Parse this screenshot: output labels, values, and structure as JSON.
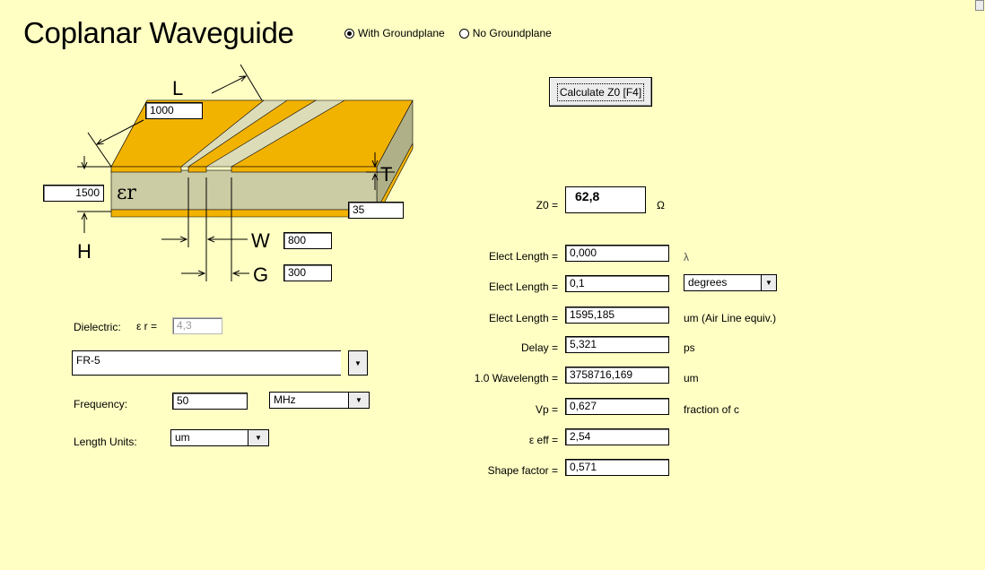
{
  "title": "Coplanar Waveguide",
  "ground_options": [
    {
      "label": "With Groundplane",
      "selected": true
    },
    {
      "label": "No Groundplane",
      "selected": false
    }
  ],
  "calculate_button": "Calculate Z0  [F4]",
  "diagram": {
    "L_label": "L",
    "L_value": "1000",
    "H_label": "H",
    "H_value": "1500",
    "T_label": "T",
    "T_value": "35",
    "W_label": "W",
    "W_value": "800",
    "G_label": "G",
    "G_value": "300",
    "er_symbol": "εr"
  },
  "z0": {
    "label": "Z0 =",
    "value": "62,8",
    "unit": "Ω"
  },
  "results": [
    {
      "label": "Elect Length =",
      "value": "0,000",
      "unit": "λ"
    },
    {
      "label": "Elect Length =",
      "value": "0,1",
      "unit": "degrees"
    },
    {
      "label": "Elect Length =",
      "value": "1595,185",
      "unit": "um  (Air Line equiv.)"
    },
    {
      "label": "Delay =",
      "value": "5,321",
      "unit": "ps"
    },
    {
      "label": "1.0 Wavelength =",
      "value": "3758716,169",
      "unit": "um"
    },
    {
      "label": "Vp =",
      "value": "0,627",
      "unit": "fraction of c"
    },
    {
      "label": "ε eff =",
      "value": "2,54",
      "unit": ""
    },
    {
      "label": "Shape factor =",
      "value": "0,571",
      "unit": ""
    }
  ],
  "dielectric": {
    "label": "Dielectric:",
    "er_label": "ε r =",
    "er_value": "4,3",
    "material": "FR-5"
  },
  "frequency": {
    "label": "Frequency:",
    "value": "50",
    "unit": "MHz"
  },
  "length_units": {
    "label": "Length Units:",
    "value": "um"
  },
  "colors": {
    "background": "#ffffc4",
    "copper": "#f2b200",
    "substrate": "#cbcba4"
  }
}
